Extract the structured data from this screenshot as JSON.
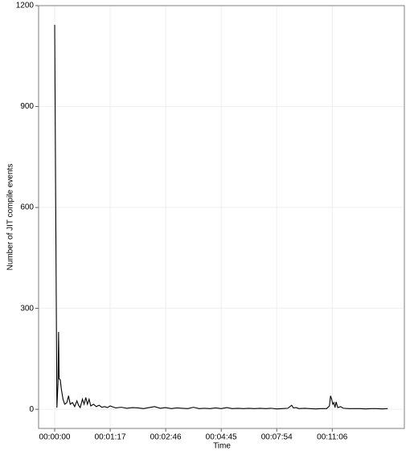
{
  "chart_data": {
    "type": "line",
    "x_label": "Time",
    "y_label": "Number of JIT compile events",
    "x": [
      0,
      4,
      6,
      7,
      8,
      10,
      12,
      15,
      18,
      22,
      25,
      28,
      32,
      36,
      40,
      43,
      46,
      50,
      53,
      56,
      59,
      62,
      65,
      70,
      75,
      80,
      85,
      90,
      95,
      100,
      110,
      120,
      130,
      140,
      150,
      160,
      170,
      180,
      190,
      200,
      210,
      220,
      230,
      240,
      250,
      260,
      270,
      280,
      290,
      300,
      310,
      320,
      330,
      340,
      350,
      360,
      370,
      380,
      390,
      400,
      410,
      420,
      427,
      430,
      435,
      440,
      450,
      460,
      470,
      480,
      490,
      495,
      497,
      499,
      501,
      503,
      505,
      507,
      510,
      515,
      520,
      530,
      540,
      550,
      560,
      570,
      580,
      590,
      600
    ],
    "series": [
      {
        "color": "#000000",
        "values": [
          1143,
          5,
          80,
          230,
          90,
          88,
          60,
          30,
          15,
          20,
          40,
          15,
          20,
          8,
          25,
          12,
          5,
          30,
          15,
          35,
          15,
          30,
          10,
          15,
          8,
          12,
          6,
          8,
          5,
          10,
          4,
          6,
          3,
          5,
          4,
          2,
          5,
          8,
          3,
          5,
          2,
          4,
          3,
          2,
          6,
          2,
          3,
          2,
          4,
          2,
          5,
          2,
          3,
          2,
          3,
          2,
          3,
          2,
          3,
          1,
          2,
          3,
          12,
          4,
          5,
          2,
          3,
          2,
          1,
          2,
          2,
          10,
          40,
          30,
          15,
          20,
          5,
          22,
          5,
          8,
          3,
          2,
          2,
          2,
          1,
          2,
          2,
          1,
          2
        ]
      }
    ],
    "xlim": [
      -29,
      630
    ],
    "xticks": [
      {
        "value": 0,
        "label": "00:00:00"
      },
      {
        "value": 100,
        "label": "00:01:17"
      },
      {
        "value": 200,
        "label": "00:02:46"
      },
      {
        "value": 300,
        "label": "00:04:45"
      },
      {
        "value": 400,
        "label": "00:07:54"
      },
      {
        "value": 500,
        "label": "00:11:06"
      }
    ],
    "ylim": [
      -57,
      1200
    ],
    "yticks": [
      0,
      300,
      600,
      900,
      1200
    ],
    "grid": true
  }
}
